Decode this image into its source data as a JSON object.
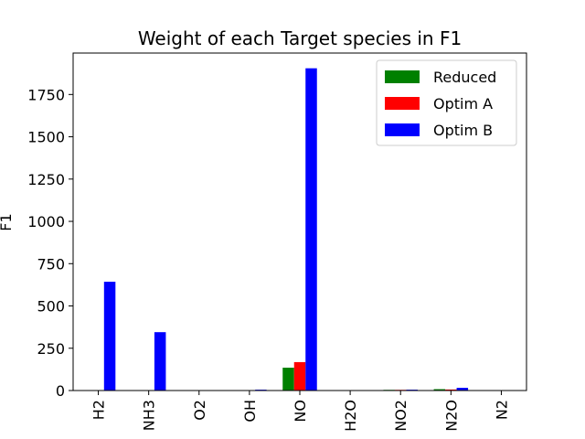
{
  "chart_data": {
    "type": "bar",
    "title": "Weight of each Target species in F1",
    "xlabel": "",
    "ylabel": "F1",
    "categories": [
      "H2",
      "NH3",
      "O2",
      "OH",
      "NO",
      "H2O",
      "NO2",
      "N2O",
      "N2"
    ],
    "series": [
      {
        "name": "Reduced",
        "color": "#008000",
        "values": [
          0,
          0,
          0,
          0,
          135,
          0,
          4,
          8,
          0
        ]
      },
      {
        "name": "Optim A",
        "color": "#ff0000",
        "values": [
          0,
          0,
          0,
          0,
          168,
          0,
          4,
          6,
          0
        ]
      },
      {
        "name": "Optim B",
        "color": "#0000ff",
        "values": [
          643,
          345,
          0,
          5,
          1905,
          0,
          5,
          16,
          0
        ]
      }
    ],
    "ylim": [
      0,
      1995
    ],
    "yticks": [
      0,
      250,
      500,
      750,
      1000,
      1250,
      1500,
      1750
    ],
    "legend_position": "top-right",
    "grid": false
  }
}
